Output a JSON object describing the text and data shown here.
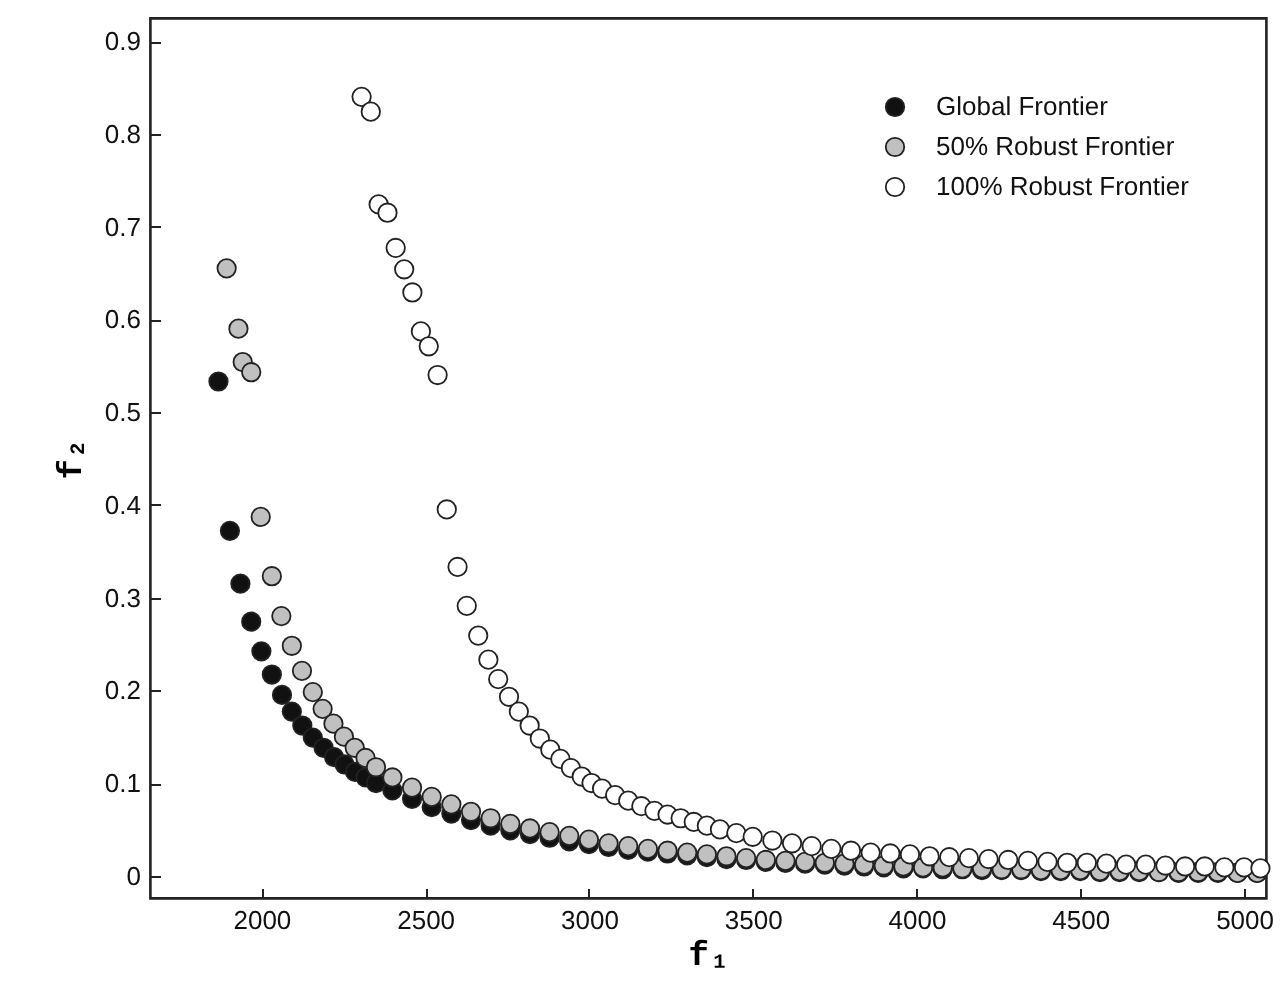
{
  "chart_data": {
    "type": "scatter",
    "xlabel": "f₁",
    "ylabel": "f₂",
    "xlim": [
      1660,
      5067
    ],
    "ylim": [
      -0.024,
      0.925
    ],
    "xticks": [
      2000,
      2500,
      3000,
      3500,
      4000,
      4500,
      5000
    ],
    "yticks": [
      0,
      0.1,
      0.2,
      0.3,
      0.4,
      0.5,
      0.6,
      0.7,
      0.8,
      0.9
    ],
    "grid": false,
    "legend": "top right",
    "marker": "circle",
    "series": [
      {
        "name": "Global Frontier",
        "color": "#111111",
        "x": [
          1869,
          1904,
          1936,
          1969,
          2000,
          2032,
          2063,
          2093,
          2125,
          2157,
          2190,
          2222,
          2254,
          2286,
          2318,
          2350,
          2400,
          2460,
          2520,
          2580,
          2640,
          2700,
          2760,
          2820,
          2880,
          2940,
          3000,
          3060,
          3120,
          3180,
          3240,
          3300,
          3360,
          3420,
          3480,
          3540,
          3600,
          3660,
          3720,
          3780,
          3840,
          3900,
          3960,
          4020,
          4080,
          4140,
          4200,
          4260,
          4320,
          4380,
          4440,
          4500,
          4560,
          4620,
          4680,
          4740,
          4800,
          4860,
          4920,
          4980,
          5040
        ],
        "values": [
          0.533,
          0.372,
          0.315,
          0.274,
          0.242,
          0.217,
          0.195,
          0.177,
          0.162,
          0.149,
          0.138,
          0.128,
          0.12,
          0.112,
          0.106,
          0.1,
          0.092,
          0.083,
          0.074,
          0.067,
          0.06,
          0.054,
          0.049,
          0.045,
          0.041,
          0.037,
          0.034,
          0.031,
          0.028,
          0.026,
          0.024,
          0.022,
          0.02,
          0.018,
          0.017,
          0.015,
          0.014,
          0.013,
          0.012,
          0.011,
          0.01,
          0.009,
          0.008,
          0.008,
          0.007,
          0.007,
          0.006,
          0.006,
          0.006,
          0.005,
          0.005,
          0.005,
          0.004,
          0.004,
          0.004,
          0.004,
          0.003,
          0.003,
          0.003,
          0.003,
          0.003
        ]
      },
      {
        "name": "50% Robust Frontier",
        "color": "#c0c0c0",
        "x": [
          1894,
          1930,
          1943,
          1969,
          1998,
          2032,
          2061,
          2093,
          2124,
          2157,
          2187,
          2220,
          2252,
          2285,
          2318,
          2350,
          2400,
          2460,
          2520,
          2580,
          2640,
          2700,
          2760,
          2820,
          2880,
          2940,
          3000,
          3060,
          3120,
          3180,
          3240,
          3300,
          3360,
          3420,
          3480,
          3540,
          3600,
          3660,
          3720,
          3780,
          3840,
          3900,
          3960,
          4020,
          4080,
          4140,
          4200,
          4260,
          4320,
          4380,
          4440,
          4500,
          4560,
          4620,
          4680,
          4740,
          4800,
          4860,
          4920,
          4980,
          5040
        ],
        "values": [
          0.655,
          0.59,
          0.554,
          0.543,
          0.387,
          0.323,
          0.28,
          0.248,
          0.221,
          0.198,
          0.18,
          0.164,
          0.15,
          0.138,
          0.127,
          0.117,
          0.106,
          0.095,
          0.085,
          0.077,
          0.069,
          0.062,
          0.056,
          0.051,
          0.047,
          0.043,
          0.039,
          0.035,
          0.032,
          0.029,
          0.027,
          0.025,
          0.023,
          0.021,
          0.019,
          0.017,
          0.016,
          0.015,
          0.014,
          0.013,
          0.012,
          0.011,
          0.01,
          0.009,
          0.009,
          0.008,
          0.008,
          0.007,
          0.007,
          0.006,
          0.006,
          0.006,
          0.005,
          0.005,
          0.005,
          0.004,
          0.004,
          0.004,
          0.004,
          0.003,
          0.003
        ]
      },
      {
        "name": "100% Robust Frontier",
        "color": "#ffffff",
        "x": [
          2306,
          2334,
          2358,
          2385,
          2410,
          2436,
          2461,
          2487,
          2511,
          2538,
          2566,
          2599,
          2627,
          2662,
          2693,
          2723,
          2756,
          2786,
          2819,
          2850,
          2882,
          2913,
          2945,
          2978,
          3008,
          3040,
          3080,
          3120,
          3160,
          3200,
          3240,
          3280,
          3320,
          3360,
          3400,
          3450,
          3500,
          3560,
          3620,
          3680,
          3740,
          3800,
          3860,
          3920,
          3980,
          4040,
          4100,
          4160,
          4220,
          4280,
          4340,
          4400,
          4460,
          4520,
          4580,
          4640,
          4700,
          4760,
          4820,
          4880,
          4940,
          5000,
          5050
        ],
        "values": [
          0.84,
          0.824,
          0.724,
          0.715,
          0.677,
          0.654,
          0.629,
          0.587,
          0.571,
          0.54,
          0.395,
          0.333,
          0.291,
          0.259,
          0.233,
          0.212,
          0.193,
          0.177,
          0.162,
          0.148,
          0.136,
          0.126,
          0.116,
          0.107,
          0.1,
          0.094,
          0.087,
          0.081,
          0.075,
          0.07,
          0.066,
          0.062,
          0.058,
          0.054,
          0.05,
          0.046,
          0.042,
          0.038,
          0.035,
          0.032,
          0.029,
          0.027,
          0.025,
          0.024,
          0.023,
          0.021,
          0.02,
          0.019,
          0.018,
          0.017,
          0.016,
          0.015,
          0.014,
          0.014,
          0.013,
          0.012,
          0.012,
          0.011,
          0.01,
          0.01,
          0.009,
          0.009,
          0.008
        ]
      }
    ]
  }
}
